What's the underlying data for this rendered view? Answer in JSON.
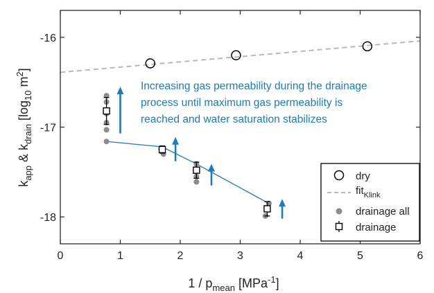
{
  "chart_data": {
    "type": "scatter",
    "xlim": [
      0,
      6
    ],
    "ylim": [
      -18.3,
      -15.7
    ],
    "x_ticks": [
      0,
      1,
      2,
      3,
      4,
      5,
      6
    ],
    "x_tick_labels": [
      "0",
      "1",
      "2",
      "3",
      "4",
      "5",
      "6"
    ],
    "y_ticks": [
      -16,
      -17,
      -18
    ],
    "y_tick_labels": [
      "-16",
      "-17",
      "-18"
    ],
    "grid": false,
    "legend_position": "bottom-right",
    "xlabel": {
      "main": "1 / p",
      "sub": "mean",
      "unit_open": " [MPa",
      "sup": "-1",
      "unit_close": "]"
    },
    "ylabel": {
      "a": "k",
      "a_sub": "app",
      "mid": " & k",
      "b_sub": "drain",
      "unit_open": " [log",
      "unit_sub": "10",
      "unit_mid": " m",
      "unit_sup": "2",
      "unit_close": "]"
    },
    "annotation": {
      "lines": [
        "Increasing gas permeability during the drainage",
        "process until maximum gas permeability is",
        "reached and water saturation stabilizes"
      ],
      "color": "#1f7ac0"
    },
    "colors": {
      "dry": "#000000",
      "fit": "#b8b8b8",
      "drainage_all": "#8c8c8c",
      "drainage_line": "#1f7ac0",
      "drainage": "#000000",
      "arrow": "#1f7ac0"
    },
    "series": [
      {
        "key": "dry",
        "legend": "dry",
        "marker": "open-circle",
        "x": [
          1.5,
          2.93,
          5.12
        ],
        "y": [
          -16.29,
          -16.2,
          -16.1
        ]
      },
      {
        "key": "fit",
        "legend": "fit",
        "legend_sub": "Klink",
        "style": "dashed",
        "x": [
          0,
          6
        ],
        "y": [
          -16.39,
          -16.04
        ]
      },
      {
        "key": "drainage_all",
        "legend": "drainage all",
        "marker": "filled-circle",
        "x": [
          0.77,
          0.77,
          0.77,
          0.77,
          0.77,
          0.77,
          1.68,
          1.69,
          1.7,
          1.72,
          2.27,
          2.27,
          2.27,
          2.27,
          3.42,
          3.46,
          3.48
        ],
        "y": [
          -16.65,
          -16.72,
          -16.85,
          -16.95,
          -17.03,
          -17.16,
          -17.24,
          -17.25,
          -17.27,
          -17.3,
          -17.41,
          -17.48,
          -17.55,
          -17.61,
          -17.99,
          -17.9,
          -17.85
        ]
      },
      {
        "key": "drainage",
        "legend": "drainage",
        "marker": "open-square-errorbar",
        "x": [
          0.77,
          1.7,
          2.27,
          3.45
        ],
        "y": [
          -16.82,
          -17.25,
          -17.48,
          -17.91
        ],
        "err": [
          0.15,
          0.04,
          0.09,
          0.08
        ]
      }
    ],
    "drainage_line": {
      "x": [
        0.77,
        1.7,
        2.27,
        3.45
      ],
      "y": [
        -17.16,
        -17.22,
        -17.41,
        -17.84
      ]
    },
    "arrows": [
      {
        "x": 1.0,
        "y_from": -17.07,
        "y_to": -16.55
      },
      {
        "x": 1.92,
        "y_from": -17.38,
        "y_to": -17.11
      },
      {
        "x": 2.52,
        "y_from": -17.65,
        "y_to": -17.41
      },
      {
        "x": 3.7,
        "y_from": -18.02,
        "y_to": -17.8
      }
    ]
  }
}
